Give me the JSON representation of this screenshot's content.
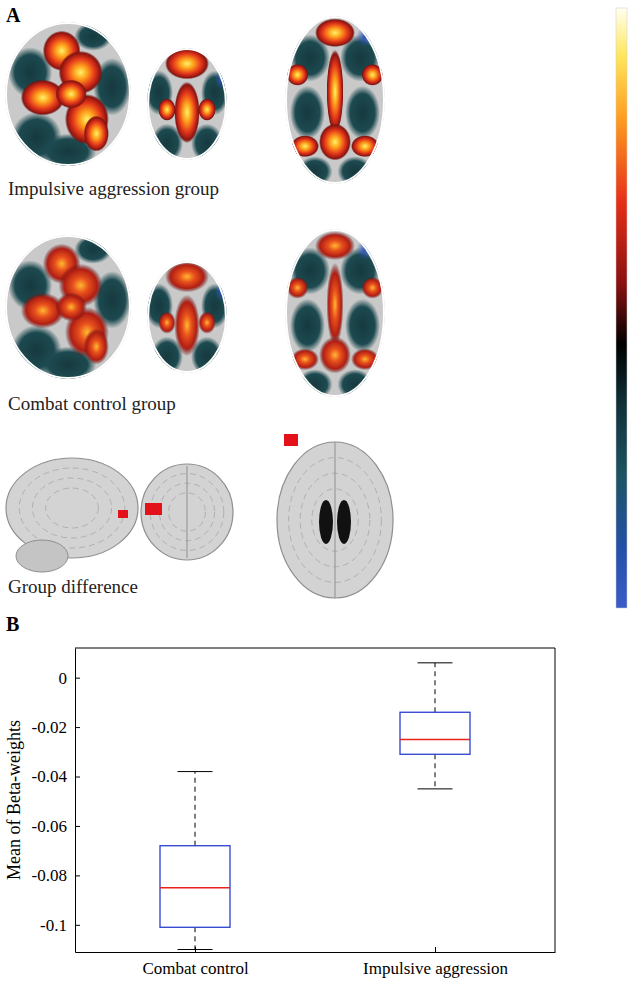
{
  "figure": {
    "panel_a": {
      "label": "A",
      "rows": [
        {
          "label": "Impulsive aggression group"
        },
        {
          "label": "Combat control group"
        },
        {
          "label": "Group difference"
        }
      ]
    },
    "panel_b": {
      "label": "B"
    }
  },
  "chart_data": {
    "type": "box",
    "categories": [
      "Combat control",
      "Impulsive aggression"
    ],
    "y_label": "Mean of Beta-weights",
    "values": [
      {
        "min": -0.11,
        "q1": -0.101,
        "median": -0.085,
        "q3": -0.068,
        "max": -0.038
      },
      {
        "min": -0.045,
        "q1": -0.031,
        "median": -0.025,
        "q3": -0.014,
        "max": 0.006
      }
    ],
    "color": "#2b3fcf",
    "ylim": [
      -0.111,
      0.012
    ],
    "yticks": [
      -0.1,
      -0.08,
      -0.06,
      -0.04,
      -0.02,
      0
    ],
    "grid": false
  }
}
